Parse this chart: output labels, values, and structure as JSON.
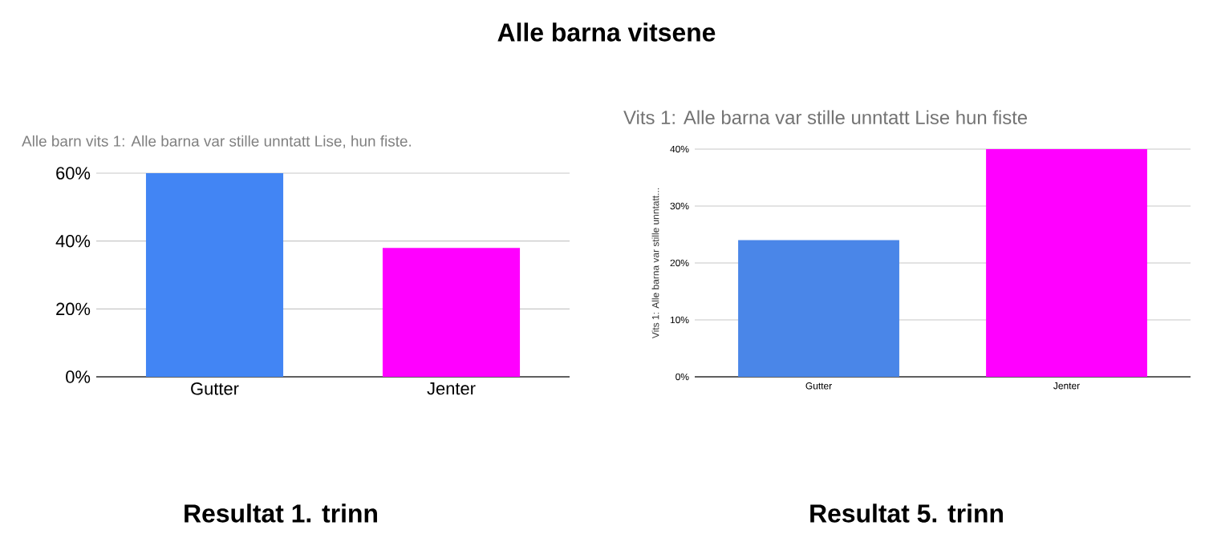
{
  "chart_data": [
    {
      "type": "bar",
      "title": "Alle barn vits 1: Alle barna var stille unntatt Lise, hun fiste.",
      "categories": [
        "Gutter",
        "Jenter"
      ],
      "values": [
        60,
        38
      ],
      "colors": [
        "#4285f4",
        "#ff00ff"
      ],
      "ylim": [
        0,
        60
      ],
      "yticks": [
        {
          "value": 0,
          "label": "0%"
        },
        {
          "value": 20,
          "label": "20%"
        },
        {
          "value": 40,
          "label": "40%"
        },
        {
          "value": 60,
          "label": "60%"
        }
      ],
      "grid": "y",
      "annotations": [
        "Alle barna vitsene",
        "Resultat 1. trinn"
      ]
    },
    {
      "type": "bar",
      "title": "Vits 1: Alle barna var stille unntatt Lise hun fiste",
      "ylabel": "Vits 1: Alle barna var stille unntatt...",
      "categories": [
        "Gutter",
        "Jenter"
      ],
      "values": [
        24,
        40
      ],
      "colors": [
        "#4a86e8",
        "#ff00ff"
      ],
      "ylim": [
        0,
        40
      ],
      "yticks": [
        {
          "value": 0,
          "label": "0%"
        },
        {
          "value": 10,
          "label": "10%"
        },
        {
          "value": 20,
          "label": "20%"
        },
        {
          "value": 30,
          "label": "30%"
        },
        {
          "value": 40,
          "label": "40%"
        }
      ],
      "grid": "y",
      "annotations": [
        "Resultat 5. trinn"
      ]
    }
  ]
}
